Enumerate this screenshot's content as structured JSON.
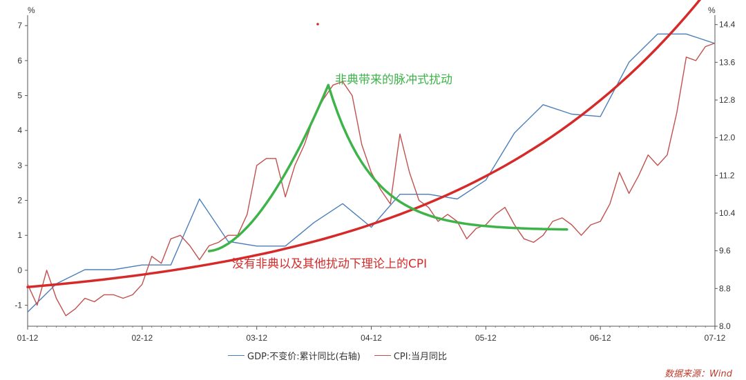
{
  "chart_data": {
    "type": "line",
    "left_axis": {
      "unit": "%",
      "min": -1.6,
      "max": 7.3,
      "ticks": [
        -1,
        0,
        1,
        2,
        3,
        4,
        5,
        6,
        7
      ]
    },
    "right_axis": {
      "unit": "%",
      "min": 8.0,
      "max": 14.6,
      "ticks": [
        "8.0",
        "8.8",
        "9.6",
        "10.4",
        "11.2",
        "12.0",
        "12.8",
        "13.6",
        "14.4"
      ]
    },
    "x_axis": {
      "min": 0,
      "max": 72,
      "ticks": [
        {
          "label": "01-12",
          "pos": 0
        },
        {
          "label": "02-12",
          "pos": 12
        },
        {
          "label": "03-12",
          "pos": 24
        },
        {
          "label": "04-12",
          "pos": 36
        },
        {
          "label": "05-12",
          "pos": 48
        },
        {
          "label": "06-12",
          "pos": 60
        },
        {
          "label": "07-12",
          "pos": 72
        }
      ]
    },
    "series": [
      {
        "name": "GDP:不变价:累计同比(右轴)",
        "axis": "right",
        "color": "#4a7ebb",
        "x": [
          0,
          3,
          6,
          9,
          12,
          15,
          18,
          21,
          24,
          27,
          30,
          33,
          36,
          39,
          42,
          45,
          48,
          51,
          54,
          57,
          60,
          63,
          66,
          69,
          72
        ],
        "y": [
          8.3,
          8.9,
          9.2,
          9.2,
          9.3,
          9.3,
          10.7,
          9.8,
          9.7,
          9.7,
          10.2,
          10.6,
          10.1,
          10.8,
          10.8,
          10.7,
          11.1,
          12.1,
          12.7,
          12.5,
          12.45,
          13.6,
          14.2,
          14.2,
          14.0
        ]
      },
      {
        "name": "CPI:当月同比",
        "axis": "left",
        "color": "#c0504d",
        "x": [
          0,
          1,
          2,
          3,
          4,
          5,
          6,
          7,
          8,
          9,
          10,
          11,
          12,
          13,
          14,
          15,
          16,
          17,
          18,
          19,
          20,
          21,
          22,
          23,
          24,
          25,
          26,
          27,
          28,
          29,
          30,
          31,
          32,
          33,
          34,
          35,
          36,
          37,
          38,
          39,
          40,
          41,
          42,
          43,
          44,
          45,
          46,
          47,
          48,
          49,
          50,
          51,
          52,
          53,
          54,
          55,
          56,
          57,
          58,
          59,
          60,
          61,
          62,
          63,
          64,
          65,
          66,
          67,
          68,
          69,
          70,
          71,
          72
        ],
        "y": [
          -0.4,
          -1.0,
          0.0,
          -0.8,
          -1.3,
          -1.1,
          -0.8,
          -0.9,
          -0.7,
          -0.7,
          -0.8,
          -0.7,
          -0.4,
          0.4,
          0.2,
          0.9,
          1.0,
          0.7,
          0.3,
          0.7,
          0.8,
          1.0,
          1.0,
          1.6,
          3.0,
          3.2,
          3.2,
          2.1,
          3.0,
          3.6,
          4.4,
          4.9,
          5.3,
          5.4,
          5.0,
          3.6,
          2.8,
          2.3,
          1.9,
          3.9,
          2.8,
          2.0,
          1.8,
          1.4,
          1.6,
          1.4,
          0.9,
          1.2,
          1.3,
          1.6,
          1.8,
          1.3,
          0.9,
          0.8,
          1.0,
          1.4,
          1.5,
          1.3,
          1.0,
          1.3,
          1.4,
          1.9,
          2.8,
          2.2,
          2.7,
          3.3,
          3.0,
          3.3,
          4.5,
          6.1,
          6.0,
          6.4,
          6.5
        ]
      }
    ],
    "annotations": [
      {
        "text": "非典带来的脉冲式扰动",
        "color": "#3db34a"
      },
      {
        "text": "没有非典以及其他扰动下理论上的CPI",
        "color": "#d62a2a"
      }
    ]
  },
  "legend": {
    "gdp_label": "GDP:不变价:累计同比(右轴)",
    "cpi_label": "CPI:当月同比"
  },
  "source": "数据来源：Wind",
  "colors": {
    "gdp": "#4a7ebb",
    "cpi": "#c0504d",
    "trend": "#d62a2a",
    "pulse": "#3db34a",
    "axis": "#333333"
  }
}
